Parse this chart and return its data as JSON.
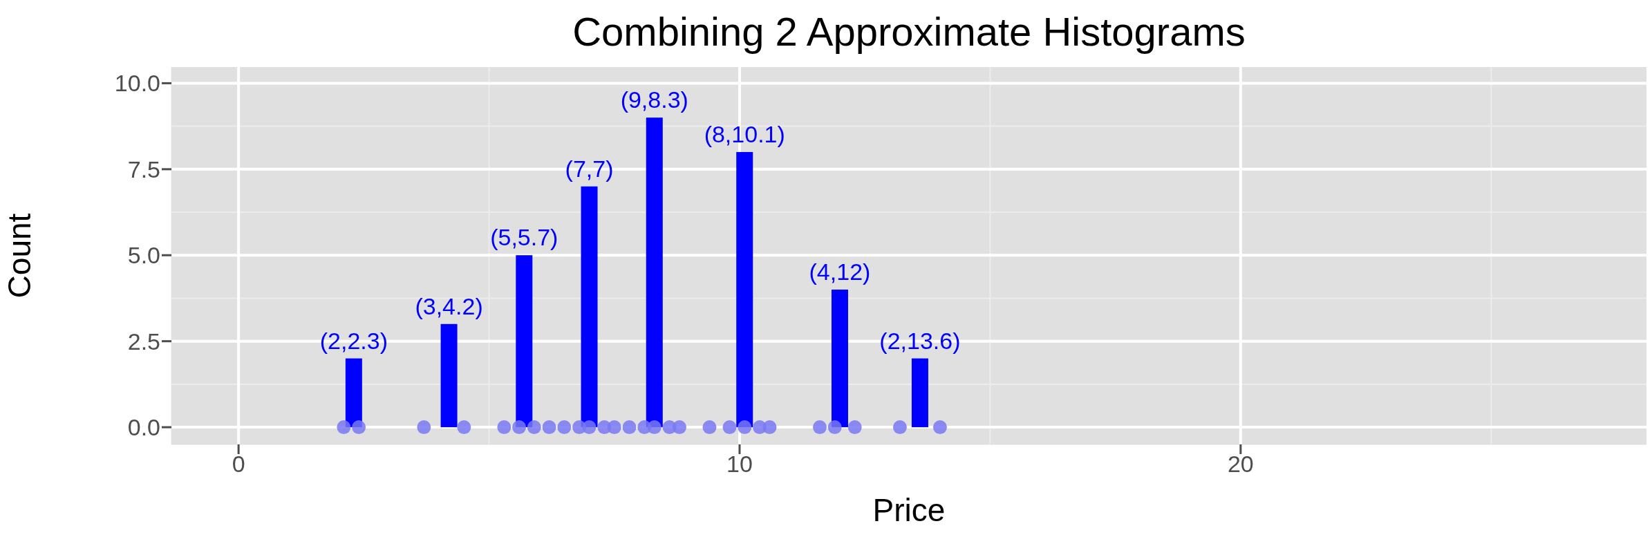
{
  "chart_data": {
    "type": "bar",
    "title": "Combining 2 Approximate Histograms",
    "xlabel": "Price",
    "ylabel": "Count",
    "xlim": [
      -1.34,
      28.1
    ],
    "xticks": [
      0,
      10,
      20
    ],
    "ylim": [
      -0.5,
      10.47
    ],
    "yticks": [
      {
        "value": 0,
        "label": "0.0"
      },
      {
        "value": 2.5,
        "label": "2.5"
      },
      {
        "value": 5,
        "label": "5.0"
      },
      {
        "value": 7.5,
        "label": "7.5"
      },
      {
        "value": 10,
        "label": "10.0"
      }
    ],
    "grid": true,
    "series": [
      {
        "color": "#0000ff",
        "x": [
          2.3,
          4.2,
          5.7,
          7,
          8.3,
          10.1,
          12,
          13.6
        ],
        "values": [
          2,
          3,
          5,
          7,
          9,
          8,
          4,
          2
        ]
      },
      {
        "type": "scatter",
        "color": "#7878f2",
        "x": [
          2.1,
          2.4,
          3.7,
          4.5,
          5.3,
          5.6,
          5.9,
          6.2,
          6.5,
          6.8,
          7.0,
          7.3,
          7.5,
          7.8,
          8.1,
          8.3,
          8.6,
          8.8,
          9.4,
          9.8,
          10.1,
          10.4,
          10.6,
          11.6,
          11.9,
          12.3,
          13.2,
          14.0
        ],
        "values": [
          0,
          0,
          0,
          0,
          0,
          0,
          0,
          0,
          0,
          0,
          0,
          0,
          0,
          0,
          0,
          0,
          0,
          0,
          0,
          0,
          0,
          0,
          0,
          0,
          0,
          0,
          0,
          0
        ]
      }
    ],
    "annotations": [
      {
        "text": "(2,2.3)",
        "x": 2.3,
        "y": 2
      },
      {
        "text": "(3,4.2)",
        "x": 4.2,
        "y": 3
      },
      {
        "text": "(5,5.7)",
        "x": 5.7,
        "y": 5
      },
      {
        "text": "(7,7)",
        "x": 7,
        "y": 7
      },
      {
        "text": "(9,8.3)",
        "x": 8.3,
        "y": 9
      },
      {
        "text": "(8,10.1)",
        "x": 10.1,
        "y": 8
      },
      {
        "text": "(4,12)",
        "x": 12,
        "y": 4
      },
      {
        "text": "(2,13.6)",
        "x": 13.6,
        "y": 2
      }
    ]
  }
}
